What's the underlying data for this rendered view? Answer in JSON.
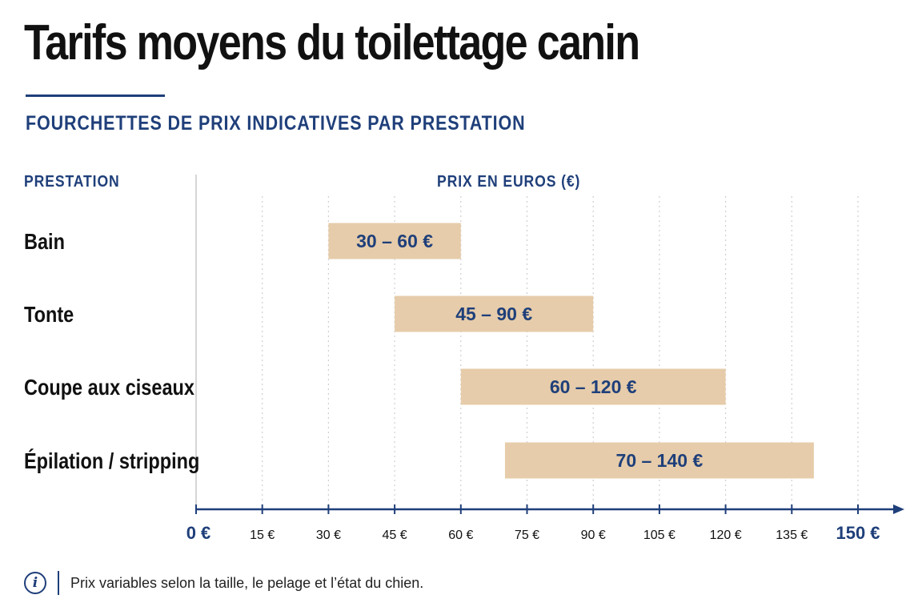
{
  "title": "Tarifs moyens du toilettage canin",
  "subtitle": "FOURCHETTES DE PRIX INDICATIVES PAR PRESTATION",
  "header_left": "PRESTATION",
  "header_right": "PRIX EN EUROS (€)",
  "footer_note": "Prix variables selon la taille, le pelage et l’état du chien.",
  "footer_icon": "info-icon",
  "colors": {
    "bar": "#e6ccaa",
    "accent": "#1f3f7a",
    "text": "#111111"
  },
  "chart_data": {
    "type": "bar",
    "orientation": "horizontal",
    "categories": [
      "Bain",
      "Tonte",
      "Coupe aux ciseaux",
      "Épilation / stripping"
    ],
    "ranges": [
      [
        30,
        60
      ],
      [
        45,
        90
      ],
      [
        60,
        120
      ],
      [
        70,
        140
      ]
    ],
    "bar_labels": [
      "30 – 60 €",
      "45 – 90 €",
      "60 – 120 €",
      "70 – 140 €"
    ],
    "xlim": [
      0,
      150
    ],
    "x_ticks": [
      0,
      15,
      30,
      45,
      60,
      75,
      90,
      105,
      120,
      135,
      150
    ],
    "x_tick_labels": [
      "0 €",
      "15 €",
      "30 €",
      "45 €",
      "60 €",
      "75 €",
      "90 €",
      "105 €",
      "120 €",
      "135 €",
      "150 €"
    ],
    "xlabel": "PRIX EN EUROS (€)",
    "grid": true
  }
}
